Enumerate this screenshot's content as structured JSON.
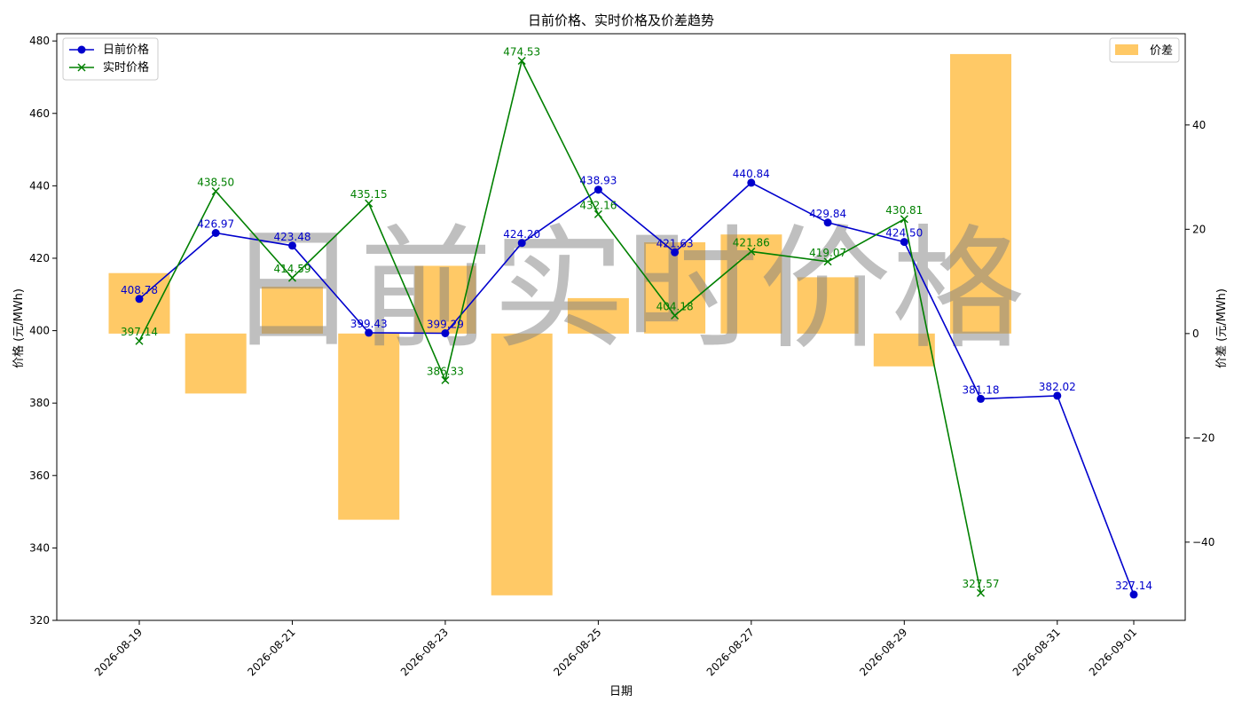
{
  "chart_data": {
    "type": "bar+line",
    "title": "日前价格、实时价格及价差趋势",
    "xlabel": "日期",
    "ylabel_left": "价格 (元/MWh)",
    "ylabel_right": "价差 (元/MWh)",
    "watermark": "日前实时价格",
    "x_dates": [
      "2026-08-19",
      "2026-08-20",
      "2026-08-21",
      "2026-08-22",
      "2026-08-23",
      "2026-08-24",
      "2026-08-25",
      "2026-08-26",
      "2026-08-27",
      "2026-08-28",
      "2026-08-29",
      "2026-08-30",
      "2026-08-31",
      "2026-09-01"
    ],
    "x_tick_labels": [
      "2026-08-19",
      "2026-08-21",
      "2026-08-23",
      "2026-08-25",
      "2026-08-27",
      "2026-08-29",
      "2026-08-31",
      "2026-09-01"
    ],
    "ylim_left": [
      320,
      482
    ],
    "yticks_left": [
      320,
      340,
      360,
      380,
      400,
      420,
      440,
      460,
      480
    ],
    "ylim_right": [
      -55,
      57.5
    ],
    "yticks_right": [
      -40,
      -20,
      0,
      20,
      40
    ],
    "series": [
      {
        "name": "日前价格",
        "kind": "line",
        "marker": "circle",
        "color": "#0000cd",
        "values": [
          408.78,
          426.97,
          423.48,
          399.43,
          399.29,
          424.2,
          438.93,
          421.63,
          440.84,
          429.84,
          424.5,
          381.18,
          382.02,
          327.14
        ],
        "labels": [
          "408.78",
          "426.97",
          "423.48",
          "399.43",
          "399.29",
          "424.20",
          "438.93",
          "421.63",
          "440.84",
          "429.84",
          "424.50",
          "381.18",
          "382.02",
          "327.14"
        ]
      },
      {
        "name": "实时价格",
        "kind": "line",
        "marker": "x",
        "color": "#008000",
        "values": [
          397.14,
          438.5,
          414.59,
          435.15,
          386.33,
          474.53,
          432.16,
          404.18,
          421.86,
          419.07,
          430.81,
          327.57,
          null,
          null
        ],
        "labels": [
          "397.14",
          "438.50",
          "414.59",
          "435.15",
          "386.33",
          "474.53",
          "432.16",
          "404.18",
          "421.86",
          "419.07",
          "430.81",
          "327.57",
          "",
          ""
        ]
      },
      {
        "name": "价差",
        "kind": "bar",
        "axis": "right",
        "color": "#ffa500",
        "opacity": 0.6,
        "values": [
          11.6,
          -11.5,
          9.0,
          -35.7,
          13.0,
          -50.2,
          6.8,
          17.5,
          19.0,
          10.8,
          -6.3,
          53.6,
          null,
          null
        ]
      }
    ],
    "legend_left_placement": "upper-left",
    "legend_right_placement": "upper-right",
    "grid": false
  }
}
